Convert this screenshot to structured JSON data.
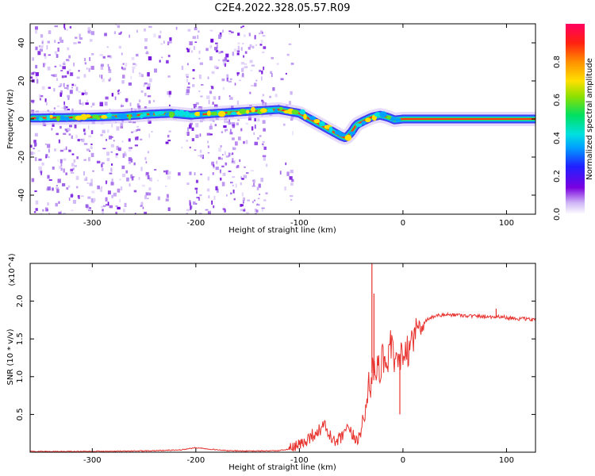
{
  "title": "C2E4.2022.328.05.57.R09",
  "chart_data": [
    {
      "type": "heatmap",
      "xlabel": "Height of straight line (km)",
      "ylabel": "Frequency (Hz)",
      "xlim": [
        -360,
        128
      ],
      "ylim": [
        -50,
        50
      ],
      "xticks": [
        -300,
        -200,
        -100,
        0,
        100
      ],
      "xtick_labels": [
        "-300",
        "-200",
        "-100",
        "0",
        "100"
      ],
      "yticks": [
        -40,
        -20,
        0,
        20,
        40
      ],
      "ytick_labels": [
        "-40",
        "-20",
        "0",
        "20",
        "40"
      ],
      "colorbar": {
        "label": "Normalized spectral amplitude",
        "range": [
          0,
          1
        ],
        "ticks": [
          0.0,
          0.2,
          0.4,
          0.6,
          0.8
        ],
        "tick_labels": [
          "0.0",
          "0.2",
          "0.4",
          "0.6",
          "0.8"
        ]
      },
      "peak_frequency_trace": {
        "x": [
          -355,
          -300,
          -270,
          -245,
          -225,
          -205,
          -180,
          -150,
          -120,
          -100,
          -90,
          -80,
          -70,
          -60,
          -55,
          -50,
          -45,
          -38,
          -30,
          -22,
          -15,
          -8,
          0,
          50,
          128
        ],
        "y": [
          0.5,
          1,
          1.5,
          2.5,
          3,
          2,
          3,
          4,
          5,
          3,
          0,
          -3,
          -6,
          -9,
          -10,
          -7,
          -3,
          -1,
          1,
          2,
          1,
          -0.5,
          0,
          0,
          0
        ]
      },
      "noise_region_x": [
        -360,
        -135
      ]
    },
    {
      "type": "line",
      "xlabel": "Height of straight line (km)",
      "ylabel": "SNR (10 * v/v)",
      "y_multiplier": "(x10^4)",
      "xlim": [
        -360,
        128
      ],
      "ylim": [
        0,
        2.5
      ],
      "xticks": [
        -300,
        -200,
        -100,
        0,
        100
      ],
      "xtick_labels": [
        "-300",
        "-200",
        "-100",
        "0",
        "100"
      ],
      "yticks": [
        0.5,
        1.0,
        1.5,
        2.0
      ],
      "ytick_labels": [
        "0.5",
        "1.0",
        "1.5",
        "2.0"
      ],
      "series": [
        {
          "color": "#e8322e",
          "x": [
            -360,
            -320,
            -280,
            -240,
            -215,
            -200,
            -185,
            -170,
            -150,
            -120,
            -105,
            -97,
            -90,
            -80,
            -75,
            -70,
            -65,
            -60,
            -55,
            -50,
            -45,
            -40,
            -36,
            -33,
            -31,
            -29,
            -27,
            -25,
            -22,
            -18,
            -15,
            -12,
            -9,
            -6,
            -3,
            0,
            5,
            10,
            15,
            20,
            25,
            30,
            40,
            50,
            60,
            70,
            80,
            90,
            95,
            100,
            110,
            120,
            128
          ],
          "y": [
            0.01,
            0.01,
            0.012,
            0.02,
            0.03,
            0.06,
            0.04,
            0.02,
            0.015,
            0.02,
            0.05,
            0.12,
            0.2,
            0.3,
            0.35,
            0.2,
            0.12,
            0.18,
            0.3,
            0.25,
            0.15,
            0.3,
            0.5,
            1.0,
            0.9,
            1.2,
            0.9,
            1.2,
            1.1,
            1.3,
            1.15,
            1.4,
            1.25,
            1.1,
            1.3,
            1.2,
            1.35,
            1.55,
            1.65,
            1.72,
            1.77,
            1.8,
            1.82,
            1.82,
            1.81,
            1.8,
            1.8,
            1.79,
            1.8,
            1.78,
            1.77,
            1.76,
            1.75
          ]
        }
      ],
      "spikes": [
        {
          "x": -30,
          "y": 2.5
        },
        {
          "x": -28,
          "y": 2.1
        },
        {
          "x": -3,
          "y": 0.5
        },
        {
          "x": 90,
          "y": 1.9
        }
      ]
    }
  ]
}
